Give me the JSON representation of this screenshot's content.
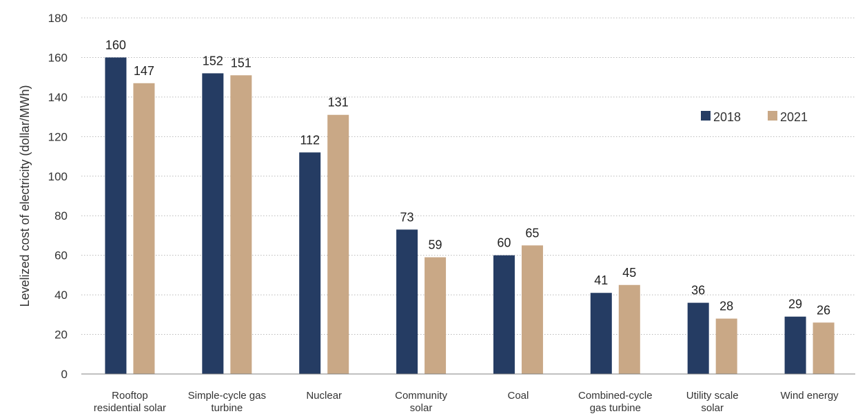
{
  "chart_data": {
    "type": "bar",
    "ylabel": "Levelized cost of electricity (dollar/MWh)",
    "ylim": [
      0,
      180
    ],
    "yticks": [
      0,
      20,
      40,
      60,
      80,
      100,
      120,
      140,
      160,
      180
    ],
    "grid": true,
    "legend_position": "right",
    "categories": [
      [
        "Rooftop",
        "residential solar"
      ],
      [
        "Simple-cycle gas",
        "turbine"
      ],
      [
        "Nuclear"
      ],
      [
        "Community",
        "solar"
      ],
      [
        "Coal"
      ],
      [
        "Combined-cycle",
        "gas turbine"
      ],
      [
        "Utility scale",
        "solar"
      ],
      [
        "Wind energy"
      ]
    ],
    "series": [
      {
        "name": "2018",
        "color": "#253c63",
        "values": [
          160,
          152,
          112,
          73,
          60,
          41,
          36,
          29
        ]
      },
      {
        "name": "2021",
        "color": "#c9a886",
        "values": [
          147,
          151,
          131,
          59,
          65,
          45,
          28,
          26
        ]
      }
    ]
  }
}
